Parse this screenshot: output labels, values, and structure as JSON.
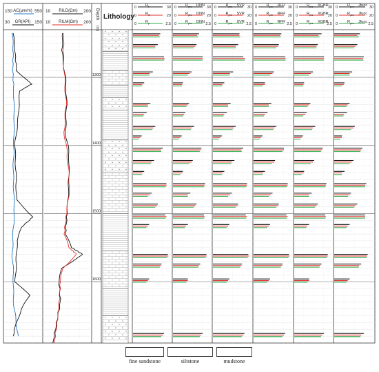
{
  "headers": {
    "track1": {
      "ac": {
        "left": "150",
        "label": "AC(μm/m)",
        "right": "550"
      },
      "gr": {
        "left": "30",
        "label": "GR(API)",
        "right": "150"
      }
    },
    "track2": {
      "rild": {
        "left": "10",
        "label": "RILD(Ωm)",
        "right": "200"
      },
      "rilm": {
        "left": "10",
        "label": "RILM(Ωm)",
        "right": "200"
      }
    },
    "depth": {
      "label": "Depth",
      "unit": "(m)"
    },
    "lithology": "Lithology"
  },
  "ticks": [
    "1300",
    "1400",
    "1500",
    "1600"
  ],
  "tracks": [
    {
      "sub": "",
      "rows": [
        {
          "left": "0",
          "name": "R",
          "sub": "t",
          "right": "30"
        },
        {
          "left": "0",
          "name": "R",
          "sub": "m",
          "right": "20"
        },
        {
          "left": "0",
          "name": "R",
          "sub": "p",
          "right": "2.5"
        }
      ]
    },
    {
      "sub": "DNN",
      "rows": [
        {
          "left": "0",
          "name": "R",
          "sub": "pre",
          "right": "30"
        },
        {
          "left": "0",
          "name": "R",
          "sub": "pre",
          "right": "20"
        },
        {
          "left": "0",
          "name": "R",
          "sub": "pre",
          "right": "2.5"
        }
      ]
    },
    {
      "sub": "SVR",
      "rows": [
        {
          "left": "0",
          "name": "R",
          "sub": "pre",
          "right": "30"
        },
        {
          "left": "0",
          "name": "R",
          "sub": "pre",
          "right": "20"
        },
        {
          "left": "0",
          "name": "R",
          "sub": "pre",
          "right": "2.5"
        }
      ]
    },
    {
      "sub": "RFR",
      "rows": [
        {
          "left": "0",
          "name": "R",
          "sub": "pre",
          "right": "30"
        },
        {
          "left": "0",
          "name": "R",
          "sub": "pre",
          "right": "20"
        },
        {
          "left": "0",
          "name": "R",
          "sub": "pre",
          "right": "2.5"
        }
      ]
    },
    {
      "sub": "XGBR",
      "rows": [
        {
          "left": "0",
          "name": "R",
          "sub": "pre",
          "right": "30"
        },
        {
          "left": "0",
          "name": "R",
          "sub": "pre",
          "right": "20"
        },
        {
          "left": "0",
          "name": "R",
          "sub": "pre",
          "right": "2.5"
        }
      ]
    },
    {
      "sub": "Jfunc",
      "rows": [
        {
          "left": "0",
          "name": "R",
          "sub": "pre",
          "right": "30"
        },
        {
          "left": "0",
          "name": "R",
          "sub": "pre",
          "right": "20"
        },
        {
          "left": "0",
          "name": "R",
          "sub": "pre",
          "right": "2.5"
        }
      ]
    }
  ],
  "legend": [
    "fine sandstone",
    "siltstone",
    "mudstone"
  ],
  "colors": {
    "ac": "#1f77c4",
    "gr": "#111111",
    "rild": "#111111",
    "rilm": "#e0312b",
    "rt": "#111111",
    "rm": "#e0312b",
    "rp": "#2eaa4a"
  },
  "chart_data": {
    "type": "line",
    "depth_range": [
      1230,
      1690
    ],
    "depth_ticks": [
      1300,
      1400,
      1500,
      1600
    ],
    "curves": {
      "AC": {
        "range": [
          150,
          550
        ],
        "depth": [
          1235,
          1260,
          1290,
          1320,
          1360,
          1400,
          1440,
          1480,
          1500,
          1520,
          1540,
          1560,
          1580,
          1600,
          1620,
          1640,
          1660,
          1680
        ],
        "values": [
          240,
          250,
          245,
          255,
          260,
          255,
          250,
          258,
          262,
          250,
          245,
          240,
          248,
          252,
          250,
          260,
          280,
          300
        ]
      },
      "GR": {
        "range": [
          30,
          150
        ],
        "depth": [
          1235,
          1260,
          1290,
          1310,
          1320,
          1360,
          1400,
          1440,
          1480,
          1505,
          1520,
          1540,
          1560,
          1580,
          1600,
          1620,
          1640,
          1660,
          1680
        ],
        "values": [
          60,
          65,
          70,
          115,
          80,
          75,
          65,
          68,
          70,
          120,
          85,
          72,
          70,
          68,
          66,
          110,
          85,
          70,
          60
        ]
      },
      "RILD": {
        "range": [
          10,
          200
        ],
        "depth": [
          1235,
          1260,
          1300,
          1340,
          1380,
          1400,
          1420,
          1460,
          1500,
          1530,
          1550,
          1560,
          1580,
          1600,
          1630,
          1660,
          1690
        ],
        "values": [
          85,
          80,
          95,
          100,
          95,
          105,
          110,
          108,
          102,
          95,
          120,
          165,
          80,
          70,
          75,
          60,
          45
        ]
      },
      "RILM": {
        "range": [
          10,
          200
        ],
        "depth": [
          1235,
          1260,
          1300,
          1340,
          1380,
          1400,
          1420,
          1460,
          1500,
          1530,
          1550,
          1560,
          1580,
          1600,
          1630,
          1660,
          1690
        ],
        "values": [
          90,
          85,
          92,
          98,
          90,
          98,
          104,
          112,
          100,
          90,
          110,
          140,
          85,
          75,
          70,
          62,
          50
        ]
      }
    },
    "lithology": [
      {
        "top": 1230,
        "bottom": 1262,
        "type": "fine sandstone"
      },
      {
        "top": 1262,
        "bottom": 1290,
        "type": "mudstone"
      },
      {
        "top": 1290,
        "bottom": 1312,
        "type": "siltstone"
      },
      {
        "top": 1312,
        "bottom": 1330,
        "type": "mudstone"
      },
      {
        "top": 1330,
        "bottom": 1348,
        "type": "fine sandstone"
      },
      {
        "top": 1348,
        "bottom": 1392,
        "type": "mudstone"
      },
      {
        "top": 1392,
        "bottom": 1440,
        "type": "fine sandstone"
      },
      {
        "top": 1440,
        "bottom": 1500,
        "type": "siltstone"
      },
      {
        "top": 1500,
        "bottom": 1555,
        "type": "mudstone"
      },
      {
        "top": 1555,
        "bottom": 1610,
        "type": "siltstone"
      },
      {
        "top": 1610,
        "bottom": 1650,
        "type": "mudstone"
      },
      {
        "top": 1650,
        "bottom": 1690,
        "type": "fine sandstone"
      }
    ],
    "bar_tracks": [
      "actual",
      "DNN",
      "SVR",
      "RFR",
      "XGBR",
      "Jfunc"
    ],
    "bars": [
      {
        "depth": 1236,
        "Rt": [
          22,
          21,
          21,
          22,
          22,
          20
        ],
        "Rm": [
          14,
          13,
          14,
          14,
          13,
          12
        ],
        "Rp": [
          1.8,
          1.7,
          1.8,
          1.8,
          1.7,
          1.6
        ]
      },
      {
        "depth": 1252,
        "Rt": [
          20,
          19,
          20,
          20,
          19,
          18
        ],
        "Rm": [
          12,
          12,
          12,
          13,
          12,
          11
        ],
        "Rp": [
          1.5,
          1.4,
          1.5,
          1.5,
          1.5,
          1.3
        ]
      },
      {
        "depth": 1270,
        "Rt": [
          25,
          24,
          24,
          25,
          24,
          23
        ],
        "Rm": [
          17,
          16,
          17,
          17,
          16,
          15
        ],
        "Rp": [
          2.1,
          2.0,
          2.1,
          2.1,
          2.0,
          1.9
        ]
      },
      {
        "depth": 1292,
        "Rt": [
          16,
          15,
          16,
          16,
          15,
          14
        ],
        "Rm": [
          9,
          9,
          9,
          10,
          9,
          8
        ],
        "Rp": [
          1.1,
          1.0,
          1.1,
          1.1,
          1.0,
          1.0
        ]
      },
      {
        "depth": 1308,
        "Rt": [
          9,
          8,
          9,
          9,
          8,
          8
        ],
        "Rm": [
          5,
          5,
          5,
          6,
          5,
          5
        ],
        "Rp": [
          0.6,
          0.6,
          0.6,
          0.6,
          0.6,
          0.5
        ]
      },
      {
        "depth": 1338,
        "Rt": [
          14,
          13,
          14,
          14,
          13,
          12
        ],
        "Rm": [
          8,
          8,
          8,
          8,
          8,
          7
        ],
        "Rp": [
          1.0,
          0.9,
          1.0,
          1.0,
          0.9,
          0.8
        ]
      },
      {
        "depth": 1352,
        "Rt": [
          11,
          10,
          11,
          11,
          10,
          10
        ],
        "Rm": [
          6,
          6,
          6,
          6,
          6,
          5
        ],
        "Rp": [
          0.7,
          0.7,
          0.7,
          0.7,
          0.6,
          0.6
        ]
      },
      {
        "depth": 1372,
        "Rt": [
          18,
          17,
          18,
          18,
          17,
          16
        ],
        "Rm": [
          11,
          10,
          11,
          11,
          10,
          10
        ],
        "Rp": [
          1.3,
          1.2,
          1.3,
          1.3,
          1.2,
          1.1
        ]
      },
      {
        "depth": 1386,
        "Rt": [
          7,
          7,
          7,
          7,
          7,
          6
        ],
        "Rm": [
          4,
          4,
          4,
          4,
          4,
          4
        ],
        "Rp": [
          0.4,
          0.4,
          0.4,
          0.4,
          0.4,
          0.4
        ]
      },
      {
        "depth": 1404,
        "Rt": [
          24,
          23,
          24,
          24,
          23,
          22
        ],
        "Rm": [
          15,
          15,
          15,
          16,
          15,
          14
        ],
        "Rp": [
          1.9,
          1.8,
          1.9,
          1.9,
          1.8,
          1.7
        ]
      },
      {
        "depth": 1422,
        "Rt": [
          17,
          16,
          17,
          17,
          16,
          15
        ],
        "Rm": [
          10,
          10,
          10,
          11,
          10,
          9
        ],
        "Rp": [
          1.2,
          1.1,
          1.2,
          1.2,
          1.1,
          1.0
        ]
      },
      {
        "depth": 1438,
        "Rt": [
          9,
          8,
          9,
          9,
          8,
          8
        ],
        "Rm": [
          5,
          5,
          5,
          5,
          5,
          4
        ],
        "Rp": [
          0.6,
          0.5,
          0.6,
          0.6,
          0.5,
          0.5
        ]
      },
      {
        "depth": 1456,
        "Rt": [
          27,
          26,
          27,
          27,
          26,
          25
        ],
        "Rm": [
          18,
          17,
          18,
          18,
          17,
          16
        ],
        "Rp": [
          2.2,
          2.1,
          2.2,
          2.2,
          2.1,
          2.0
        ]
      },
      {
        "depth": 1470,
        "Rt": [
          15,
          14,
          15,
          15,
          14,
          13
        ],
        "Rm": [
          9,
          8,
          9,
          9,
          8,
          8
        ],
        "Rp": [
          1.0,
          1.0,
          1.0,
          1.0,
          1.0,
          0.9
        ]
      },
      {
        "depth": 1486,
        "Rt": [
          20,
          19,
          20,
          20,
          19,
          18
        ],
        "Rm": [
          13,
          12,
          13,
          13,
          12,
          11
        ],
        "Rp": [
          1.5,
          1.4,
          1.5,
          1.5,
          1.4,
          1.3
        ]
      },
      {
        "depth": 1502,
        "Rt": [
          26,
          25,
          26,
          26,
          25,
          24
        ],
        "Rm": [
          18,
          17,
          18,
          18,
          17,
          16
        ],
        "Rp": [
          2.2,
          2.1,
          2.2,
          2.2,
          2.1,
          2.0
        ]
      },
      {
        "depth": 1516,
        "Rt": [
          13,
          12,
          13,
          13,
          12,
          12
        ],
        "Rm": [
          8,
          7,
          8,
          8,
          7,
          7
        ],
        "Rp": [
          0.9,
          0.8,
          0.9,
          0.9,
          0.8,
          0.8
        ]
      },
      {
        "depth": 1560,
        "Rt": [
          28,
          27,
          28,
          28,
          27,
          26
        ],
        "Rm": [
          19,
          18,
          19,
          19,
          18,
          17
        ],
        "Rp": [
          2.3,
          2.2,
          2.3,
          2.3,
          2.2,
          2.1
        ]
      },
      {
        "depth": 1574,
        "Rt": [
          23,
          22,
          23,
          23,
          22,
          21
        ],
        "Rm": [
          15,
          14,
          15,
          15,
          14,
          13
        ],
        "Rp": [
          1.8,
          1.7,
          1.8,
          1.8,
          1.7,
          1.6
        ]
      },
      {
        "depth": 1596,
        "Rt": [
          13,
          12,
          13,
          13,
          12,
          12
        ],
        "Rm": [
          8,
          8,
          8,
          8,
          8,
          7
        ],
        "Rp": [
          0.9,
          0.9,
          0.9,
          0.9,
          0.9,
          0.8
        ]
      },
      {
        "depth": 1676,
        "Rt": [
          25,
          24,
          25,
          25,
          24,
          23
        ],
        "Rm": [
          16,
          15,
          16,
          16,
          15,
          14
        ],
        "Rp": [
          1.9,
          1.8,
          1.9,
          1.9,
          1.8,
          1.7
        ]
      }
    ]
  }
}
